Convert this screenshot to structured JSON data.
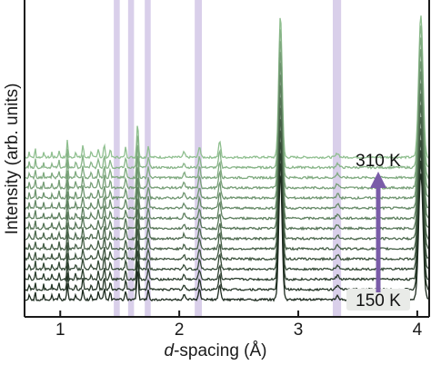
{
  "chart_data": {
    "type": "line",
    "xlabel_prefix": "d",
    "xlabel_rest": "-spacing (Å)",
    "ylabel": "Intensity (arb. units)",
    "xlim": [
      0.7,
      4.1
    ],
    "xticks": [
      1,
      2,
      3,
      4
    ],
    "x_tick_labels": [
      "1",
      "2",
      "3",
      "4"
    ],
    "temperature_labels": {
      "low": "150 K",
      "high": "310 K"
    },
    "temperature_range_K": [
      150,
      310
    ],
    "series_count": 15,
    "highlight_bands_d": [
      [
        1.45,
        1.5
      ],
      [
        1.57,
        1.62
      ],
      [
        1.71,
        1.76
      ],
      [
        2.13,
        2.19
      ],
      [
        3.29,
        3.36
      ]
    ],
    "colors": {
      "band": "#b9a8d8",
      "arrow": "#7a5ca8",
      "trace_low": "#1d2b1f",
      "trace_high": "#8fbf8f",
      "axis": "#1a1a1a",
      "label_box": "#e9ebe8"
    },
    "peaks": [
      {
        "d": 0.74,
        "h": 0.3,
        "w": 0.004
      },
      {
        "d": 0.79,
        "h": 0.45,
        "w": 0.004
      },
      {
        "d": 0.86,
        "h": 0.3,
        "w": 0.004
      },
      {
        "d": 0.93,
        "h": 0.25,
        "w": 0.004
      },
      {
        "d": 0.99,
        "h": 0.35,
        "w": 0.005
      },
      {
        "d": 1.06,
        "h": 0.9,
        "w": 0.005
      },
      {
        "d": 1.13,
        "h": 0.3,
        "w": 0.005
      },
      {
        "d": 1.19,
        "h": 0.6,
        "w": 0.006
      },
      {
        "d": 1.26,
        "h": 0.25,
        "w": 0.006
      },
      {
        "d": 1.32,
        "h": 0.45,
        "w": 0.006
      },
      {
        "d": 1.37,
        "h": 0.65,
        "w": 0.006
      },
      {
        "d": 1.42,
        "h": 0.4,
        "w": 0.006
      },
      {
        "d": 1.55,
        "h": 0.5,
        "w": 0.006
      },
      {
        "d": 1.65,
        "h": 1.7,
        "w": 0.007
      },
      {
        "d": 1.74,
        "h": 0.55,
        "w": 0.007
      },
      {
        "d": 2.04,
        "h": 0.25,
        "w": 0.008
      },
      {
        "d": 2.17,
        "h": 0.55,
        "w": 0.008
      },
      {
        "d": 2.34,
        "h": 0.8,
        "w": 0.009
      },
      {
        "d": 2.85,
        "h": 7.0,
        "w": 0.014
      },
      {
        "d": 3.33,
        "h": 0.2,
        "w": 0.012
      },
      {
        "d": 4.03,
        "h": 7.0,
        "w": 0.018
      }
    ]
  }
}
